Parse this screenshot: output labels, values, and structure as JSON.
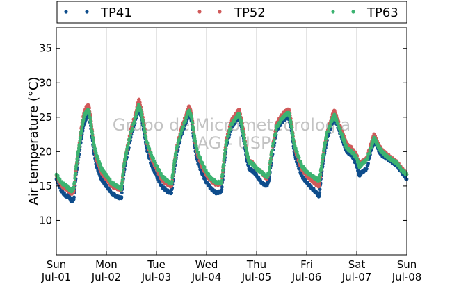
{
  "chart_data": {
    "type": "scatter",
    "title": "",
    "xlabel": "",
    "ylabel": "Air temperature (°C)",
    "ylim": [
      5,
      38
    ],
    "xlim_days": [
      0,
      7
    ],
    "yticks": [
      10,
      15,
      20,
      25,
      30,
      35
    ],
    "grid": "vertical-day-lines",
    "legend_position": "top",
    "x_ticks": [
      {
        "day": "Sun",
        "date": "Jul-01"
      },
      {
        "day": "Mon",
        "date": "Jul-02"
      },
      {
        "day": "Tue",
        "date": "Jul-03"
      },
      {
        "day": "Wed",
        "date": "Jul-04"
      },
      {
        "day": "Thu",
        "date": "Jul-05"
      },
      {
        "day": "Fri",
        "date": "Jul-06"
      },
      {
        "day": "Sat",
        "date": "Jul-07"
      },
      {
        "day": "Sun",
        "date": "Jul-08"
      }
    ],
    "watermark": [
      "Grupo de Micrometeorologia",
      "IAG - USP"
    ],
    "x_unit": "days since Jul-01 00:00",
    "series": [
      {
        "name": "TP41",
        "color": "#0e4d8c",
        "points": [
          [
            0.0,
            16.0
          ],
          [
            0.1,
            14.3
          ],
          [
            0.2,
            13.5
          ],
          [
            0.25,
            13.6
          ],
          [
            0.3,
            12.8
          ],
          [
            0.35,
            13.1
          ],
          [
            0.4,
            17.0
          ],
          [
            0.45,
            19.5
          ],
          [
            0.5,
            22.0
          ],
          [
            0.55,
            24.0
          ],
          [
            0.6,
            25.0
          ],
          [
            0.65,
            25.5
          ],
          [
            0.7,
            23.0
          ],
          [
            0.75,
            20.0
          ],
          [
            0.8,
            18.0
          ],
          [
            0.85,
            17.0
          ],
          [
            0.9,
            16.0
          ],
          [
            0.95,
            15.5
          ],
          [
            1.0,
            15.0
          ],
          [
            1.1,
            14.0
          ],
          [
            1.2,
            13.5
          ],
          [
            1.3,
            13.2
          ],
          [
            1.35,
            17.0
          ],
          [
            1.4,
            19.0
          ],
          [
            1.5,
            22.5
          ],
          [
            1.6,
            25.0
          ],
          [
            1.65,
            26.3
          ],
          [
            1.7,
            25.0
          ],
          [
            1.75,
            23.0
          ],
          [
            1.8,
            20.5
          ],
          [
            1.9,
            18.0
          ],
          [
            2.0,
            16.5
          ],
          [
            2.1,
            15.0
          ],
          [
            2.2,
            14.3
          ],
          [
            2.3,
            14.0
          ],
          [
            2.35,
            17.0
          ],
          [
            2.4,
            19.5
          ],
          [
            2.5,
            22.5
          ],
          [
            2.6,
            24.5
          ],
          [
            2.65,
            25.7
          ],
          [
            2.7,
            24.5
          ],
          [
            2.75,
            21.5
          ],
          [
            2.8,
            19.0
          ],
          [
            2.9,
            17.0
          ],
          [
            3.0,
            15.5
          ],
          [
            3.1,
            14.5
          ],
          [
            3.2,
            14.0
          ],
          [
            3.3,
            14.2
          ],
          [
            3.35,
            18.0
          ],
          [
            3.4,
            21.0
          ],
          [
            3.5,
            23.5
          ],
          [
            3.6,
            24.6
          ],
          [
            3.65,
            25.0
          ],
          [
            3.7,
            23.5
          ],
          [
            3.75,
            21.5
          ],
          [
            3.8,
            19.0
          ],
          [
            3.85,
            17.5
          ],
          [
            3.9,
            17.3
          ],
          [
            3.95,
            17.0
          ],
          [
            4.0,
            16.5
          ],
          [
            4.1,
            15.5
          ],
          [
            4.2,
            15.0
          ],
          [
            4.25,
            16.0
          ],
          [
            4.3,
            19.0
          ],
          [
            4.4,
            23.0
          ],
          [
            4.5,
            24.3
          ],
          [
            4.6,
            25.0
          ],
          [
            4.65,
            24.8
          ],
          [
            4.7,
            23.0
          ],
          [
            4.75,
            20.0
          ],
          [
            4.8,
            18.5
          ],
          [
            4.9,
            16.5
          ],
          [
            5.0,
            15.5
          ],
          [
            5.1,
            14.7
          ],
          [
            5.2,
            14.0
          ],
          [
            5.25,
            13.5
          ],
          [
            5.3,
            17.0
          ],
          [
            5.35,
            19.5
          ],
          [
            5.4,
            21.5
          ],
          [
            5.5,
            24.0
          ],
          [
            5.55,
            25.0
          ],
          [
            5.6,
            24.0
          ],
          [
            5.7,
            22.0
          ],
          [
            5.75,
            21.0
          ],
          [
            5.8,
            20.0
          ],
          [
            5.9,
            19.5
          ],
          [
            6.0,
            18.0
          ],
          [
            6.05,
            16.5
          ],
          [
            6.1,
            17.0
          ],
          [
            6.2,
            17.5
          ],
          [
            6.3,
            20.5
          ],
          [
            6.35,
            21.5
          ],
          [
            6.4,
            21.0
          ],
          [
            6.45,
            20.0
          ],
          [
            6.5,
            19.5
          ],
          [
            6.6,
            19.0
          ],
          [
            6.7,
            18.5
          ],
          [
            6.8,
            18.0
          ],
          [
            6.9,
            17.0
          ],
          [
            7.0,
            16.0
          ]
        ]
      },
      {
        "name": "TP52",
        "color": "#d05a5a",
        "points": [
          [
            0.0,
            16.5
          ],
          [
            0.1,
            15.0
          ],
          [
            0.2,
            14.6
          ],
          [
            0.25,
            14.3
          ],
          [
            0.3,
            13.9
          ],
          [
            0.35,
            14.3
          ],
          [
            0.4,
            18.0
          ],
          [
            0.45,
            20.5
          ],
          [
            0.5,
            23.5
          ],
          [
            0.55,
            25.5
          ],
          [
            0.6,
            26.5
          ],
          [
            0.65,
            26.7
          ],
          [
            0.7,
            24.0
          ],
          [
            0.75,
            21.0
          ],
          [
            0.8,
            19.0
          ],
          [
            0.85,
            18.0
          ],
          [
            0.9,
            17.0
          ],
          [
            0.95,
            16.5
          ],
          [
            1.0,
            16.0
          ],
          [
            1.1,
            15.0
          ],
          [
            1.2,
            14.7
          ],
          [
            1.3,
            14.5
          ],
          [
            1.35,
            18.0
          ],
          [
            1.4,
            20.0
          ],
          [
            1.5,
            23.5
          ],
          [
            1.6,
            26.0
          ],
          [
            1.65,
            27.6
          ],
          [
            1.7,
            26.0
          ],
          [
            1.75,
            24.0
          ],
          [
            1.8,
            21.5
          ],
          [
            1.9,
            19.0
          ],
          [
            2.0,
            17.5
          ],
          [
            2.1,
            16.0
          ],
          [
            2.2,
            15.3
          ],
          [
            2.3,
            15.0
          ],
          [
            2.35,
            18.0
          ],
          [
            2.4,
            20.5
          ],
          [
            2.5,
            23.5
          ],
          [
            2.6,
            25.5
          ],
          [
            2.65,
            26.6
          ],
          [
            2.7,
            25.5
          ],
          [
            2.75,
            22.5
          ],
          [
            2.8,
            20.0
          ],
          [
            2.9,
            18.0
          ],
          [
            3.0,
            16.5
          ],
          [
            3.1,
            15.7
          ],
          [
            3.2,
            15.2
          ],
          [
            3.3,
            15.4
          ],
          [
            3.35,
            19.0
          ],
          [
            3.4,
            22.0
          ],
          [
            3.5,
            24.5
          ],
          [
            3.6,
            25.6
          ],
          [
            3.65,
            26.1
          ],
          [
            3.7,
            24.5
          ],
          [
            3.75,
            22.5
          ],
          [
            3.8,
            20.0
          ],
          [
            3.85,
            18.5
          ],
          [
            3.9,
            18.5
          ],
          [
            3.95,
            18.0
          ],
          [
            4.0,
            17.5
          ],
          [
            4.1,
            17.0
          ],
          [
            4.2,
            16.0
          ],
          [
            4.25,
            17.0
          ],
          [
            4.3,
            20.0
          ],
          [
            4.4,
            24.0
          ],
          [
            4.5,
            25.3
          ],
          [
            4.6,
            26.0
          ],
          [
            4.65,
            26.0
          ],
          [
            4.7,
            24.0
          ],
          [
            4.75,
            21.0
          ],
          [
            4.8,
            19.5
          ],
          [
            4.9,
            17.5
          ],
          [
            5.0,
            16.5
          ],
          [
            5.1,
            15.8
          ],
          [
            5.2,
            15.2
          ],
          [
            5.25,
            15.0
          ],
          [
            5.3,
            18.0
          ],
          [
            5.35,
            20.5
          ],
          [
            5.4,
            22.5
          ],
          [
            5.5,
            25.0
          ],
          [
            5.55,
            26.0
          ],
          [
            5.6,
            25.0
          ],
          [
            5.7,
            23.0
          ],
          [
            5.75,
            22.0
          ],
          [
            5.8,
            21.0
          ],
          [
            5.9,
            20.5
          ],
          [
            6.0,
            19.5
          ],
          [
            6.05,
            18.0
          ],
          [
            6.1,
            18.5
          ],
          [
            6.2,
            19.0
          ],
          [
            6.3,
            21.5
          ],
          [
            6.35,
            22.5
          ],
          [
            6.4,
            21.5
          ],
          [
            6.45,
            20.8
          ],
          [
            6.5,
            20.2
          ],
          [
            6.6,
            19.6
          ],
          [
            6.7,
            19.0
          ],
          [
            6.8,
            18.5
          ],
          [
            6.9,
            17.5
          ],
          [
            7.0,
            16.7
          ]
        ]
      },
      {
        "name": "TP63",
        "color": "#3cb371",
        "points": [
          [
            0.0,
            16.7
          ],
          [
            0.1,
            15.5
          ],
          [
            0.2,
            15.0
          ],
          [
            0.25,
            14.6
          ],
          [
            0.3,
            14.3
          ],
          [
            0.35,
            14.8
          ],
          [
            0.4,
            18.0
          ],
          [
            0.45,
            20.5
          ],
          [
            0.5,
            23.0
          ],
          [
            0.55,
            25.0
          ],
          [
            0.6,
            25.8
          ],
          [
            0.65,
            26.0
          ],
          [
            0.7,
            23.5
          ],
          [
            0.75,
            21.0
          ],
          [
            0.8,
            19.5
          ],
          [
            0.85,
            18.5
          ],
          [
            0.9,
            17.5
          ],
          [
            0.95,
            17.0
          ],
          [
            1.0,
            16.5
          ],
          [
            1.1,
            15.5
          ],
          [
            1.2,
            15.0
          ],
          [
            1.3,
            14.6
          ],
          [
            1.35,
            18.0
          ],
          [
            1.4,
            20.0
          ],
          [
            1.5,
            23.0
          ],
          [
            1.6,
            25.5
          ],
          [
            1.65,
            26.8
          ],
          [
            1.7,
            25.5
          ],
          [
            1.75,
            23.5
          ],
          [
            1.8,
            21.5
          ],
          [
            1.9,
            19.5
          ],
          [
            2.0,
            18.0
          ],
          [
            2.1,
            16.5
          ],
          [
            2.2,
            15.8
          ],
          [
            2.3,
            15.3
          ],
          [
            2.35,
            18.0
          ],
          [
            2.4,
            20.5
          ],
          [
            2.5,
            23.0
          ],
          [
            2.6,
            25.0
          ],
          [
            2.65,
            26.0
          ],
          [
            2.7,
            25.0
          ],
          [
            2.75,
            22.5
          ],
          [
            2.8,
            20.5
          ],
          [
            2.9,
            18.5
          ],
          [
            3.0,
            17.0
          ],
          [
            3.1,
            16.0
          ],
          [
            3.2,
            15.5
          ],
          [
            3.3,
            15.5
          ],
          [
            3.35,
            19.0
          ],
          [
            3.4,
            21.5
          ],
          [
            3.5,
            24.0
          ],
          [
            3.6,
            25.0
          ],
          [
            3.65,
            25.5
          ],
          [
            3.7,
            24.0
          ],
          [
            3.75,
            22.0
          ],
          [
            3.8,
            20.0
          ],
          [
            3.85,
            18.5
          ],
          [
            3.9,
            18.3
          ],
          [
            3.95,
            18.0
          ],
          [
            4.0,
            17.5
          ],
          [
            4.1,
            17.0
          ],
          [
            4.2,
            16.3
          ],
          [
            4.25,
            17.0
          ],
          [
            4.3,
            20.0
          ],
          [
            4.4,
            23.5
          ],
          [
            4.5,
            24.8
          ],
          [
            4.6,
            25.5
          ],
          [
            4.65,
            25.5
          ],
          [
            4.7,
            23.5
          ],
          [
            4.75,
            21.0
          ],
          [
            4.8,
            20.0
          ],
          [
            4.9,
            18.0
          ],
          [
            5.0,
            17.0
          ],
          [
            5.1,
            16.5
          ],
          [
            5.2,
            16.0
          ],
          [
            5.25,
            15.8
          ],
          [
            5.3,
            18.0
          ],
          [
            5.35,
            20.5
          ],
          [
            5.4,
            22.5
          ],
          [
            5.5,
            24.5
          ],
          [
            5.55,
            25.3
          ],
          [
            5.6,
            24.5
          ],
          [
            5.7,
            22.5
          ],
          [
            5.75,
            21.5
          ],
          [
            5.8,
            20.5
          ],
          [
            5.9,
            20.0
          ],
          [
            6.0,
            19.0
          ],
          [
            6.05,
            17.8
          ],
          [
            6.1,
            18.2
          ],
          [
            6.2,
            18.8
          ],
          [
            6.3,
            21.0
          ],
          [
            6.35,
            22.0
          ],
          [
            6.4,
            21.2
          ],
          [
            6.45,
            20.5
          ],
          [
            6.5,
            20.0
          ],
          [
            6.6,
            19.3
          ],
          [
            6.7,
            18.8
          ],
          [
            6.8,
            18.3
          ],
          [
            6.9,
            17.3
          ],
          [
            7.0,
            16.7
          ]
        ]
      }
    ]
  }
}
